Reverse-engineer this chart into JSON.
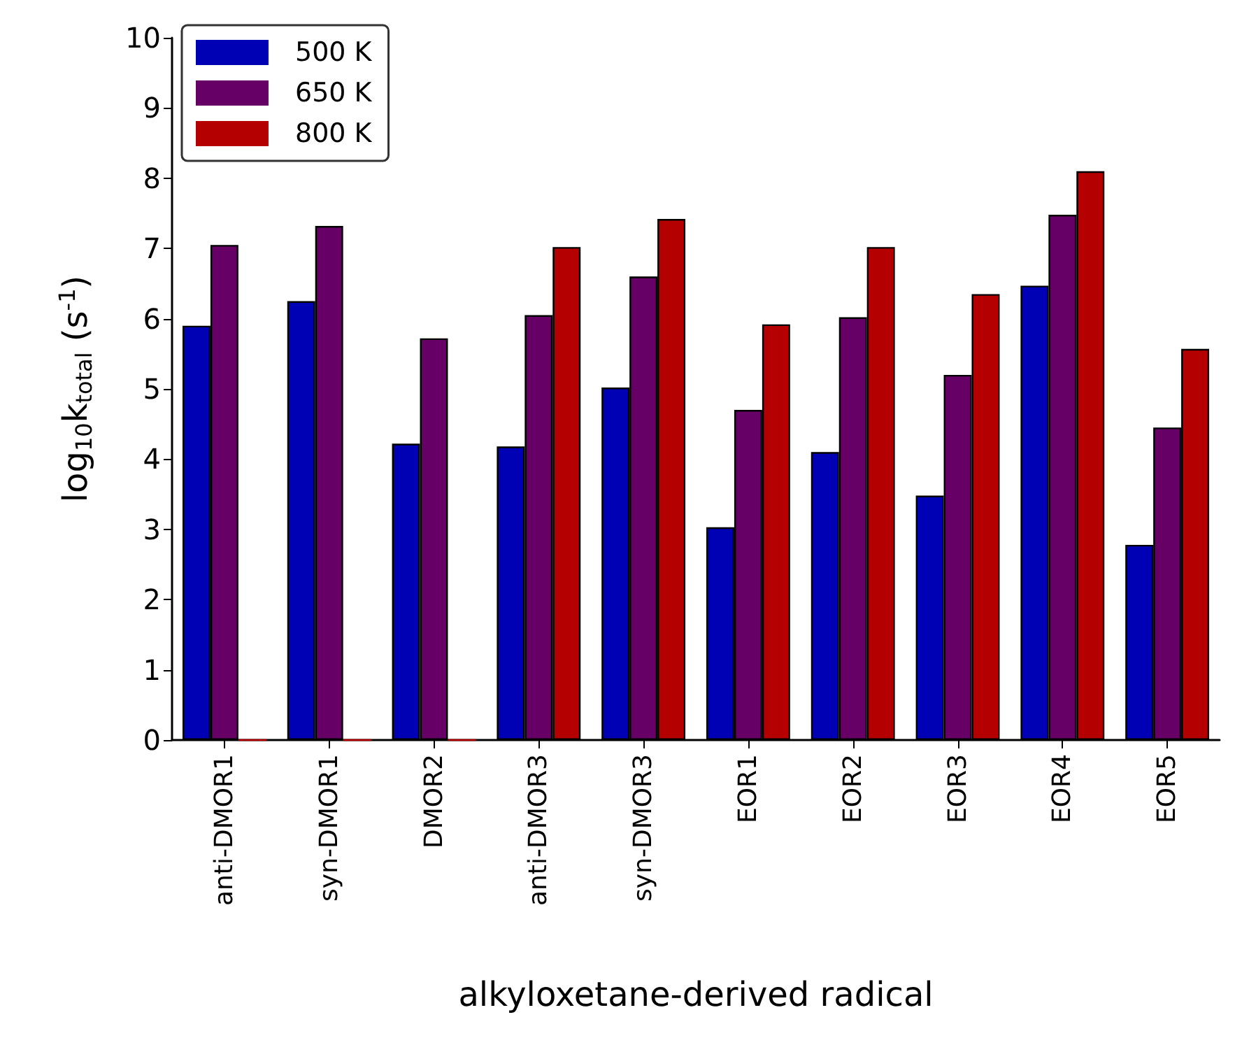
{
  "chart_data": {
    "type": "bar",
    "xlabel": "alkyloxetane-derived radical",
    "ylabel": "log$_{10}$k$_{total}$ (s$^{-1}$)",
    "categories": [
      "anti-DMOR1",
      "syn-DMOR1",
      "DMOR2",
      "anti-DMOR3",
      "syn-DMOR3",
      "EOR1",
      "EOR2",
      "EOR3",
      "EOR4",
      "EOR5"
    ],
    "series": [
      {
        "name": "500 K",
        "color": "#0000b4",
        "values": [
          5.9,
          6.25,
          4.22,
          4.18,
          5.02,
          3.03,
          4.1,
          3.48,
          6.47,
          2.78
        ]
      },
      {
        "name": "650 K",
        "color": "#660066",
        "values": [
          7.05,
          7.32,
          5.72,
          6.05,
          6.6,
          4.7,
          6.02,
          5.2,
          7.48,
          4.45
        ]
      },
      {
        "name": "800 K",
        "color": "#b40000",
        "values": [
          0,
          0,
          0,
          7.02,
          7.42,
          5.92,
          7.02,
          6.35,
          8.1,
          5.57
        ]
      }
    ],
    "ylim": [
      0,
      10
    ],
    "yticks": [
      0,
      1,
      2,
      3,
      4,
      5,
      6,
      7,
      8,
      9,
      10
    ],
    "grid": false,
    "legend": "top left"
  }
}
